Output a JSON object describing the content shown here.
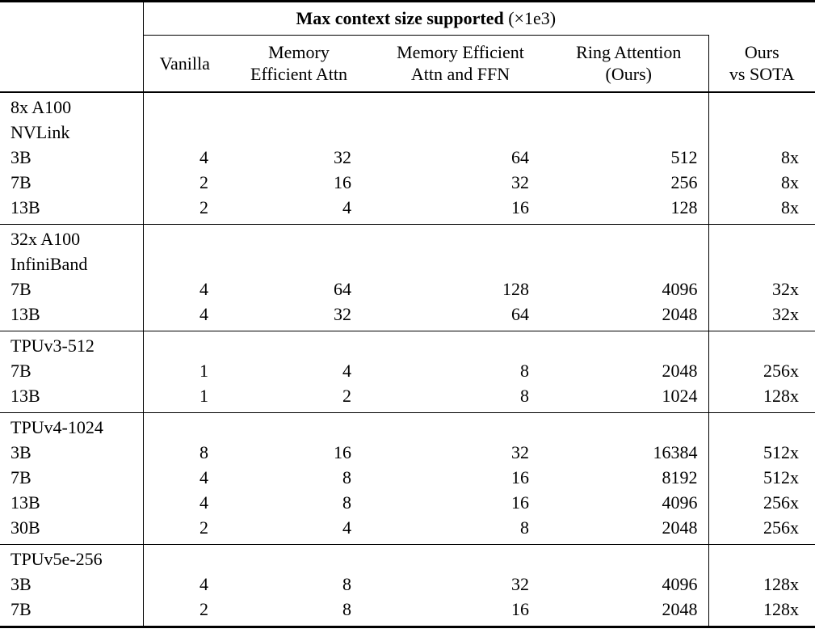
{
  "page": {
    "background": "#ffffff",
    "text_color": "#000000",
    "rule_color": "#000000"
  },
  "table": {
    "span_header": {
      "title_bold": "Max context size supported",
      "title_suffix": "(×1e3)"
    },
    "columns": [
      {
        "id": "vanilla",
        "lines": [
          "Vanilla"
        ]
      },
      {
        "id": "memory-efficient-attn",
        "lines": [
          "Memory",
          "Efficient Attn"
        ]
      },
      {
        "id": "memory-efficient-attn-and-ffn",
        "lines": [
          "Memory Efficient",
          "Attn and FFN"
        ]
      },
      {
        "id": "ring-attention-ours",
        "lines": [
          "Ring Attention",
          "(Ours)"
        ]
      },
      {
        "id": "ours-vs-sota",
        "lines": [
          "Ours",
          "vs SOTA"
        ]
      }
    ],
    "groups": [
      {
        "label_lines": [
          "8x A100",
          "NVLink"
        ],
        "rows": [
          {
            "label": "3B",
            "values": [
              "4",
              "32",
              "64",
              "512",
              "8x"
            ]
          },
          {
            "label": "7B",
            "values": [
              "2",
              "16",
              "32",
              "256",
              "8x"
            ]
          },
          {
            "label": "13B",
            "values": [
              "2",
              "4",
              "16",
              "128",
              "8x"
            ]
          }
        ]
      },
      {
        "label_lines": [
          "32x A100",
          "InfiniBand"
        ],
        "rows": [
          {
            "label": "7B",
            "values": [
              "4",
              "64",
              "128",
              "4096",
              "32x"
            ]
          },
          {
            "label": "13B",
            "values": [
              "4",
              "32",
              "64",
              "2048",
              "32x"
            ]
          }
        ]
      },
      {
        "label_lines": [
          "TPUv3-512"
        ],
        "rows": [
          {
            "label": "7B",
            "values": [
              "1",
              "4",
              "8",
              "2048",
              "256x"
            ]
          },
          {
            "label": "13B",
            "values": [
              "1",
              "2",
              "8",
              "1024",
              "128x"
            ]
          }
        ]
      },
      {
        "label_lines": [
          "TPUv4-1024"
        ],
        "rows": [
          {
            "label": "3B",
            "values": [
              "8",
              "16",
              "32",
              "16384",
              "512x"
            ]
          },
          {
            "label": "7B",
            "values": [
              "4",
              "8",
              "16",
              "8192",
              "512x"
            ]
          },
          {
            "label": "13B",
            "values": [
              "4",
              "8",
              "16",
              "4096",
              "256x"
            ]
          },
          {
            "label": "30B",
            "values": [
              "2",
              "4",
              "8",
              "2048",
              "256x"
            ]
          }
        ]
      },
      {
        "label_lines": [
          "TPUv5e-256"
        ],
        "rows": [
          {
            "label": "3B",
            "values": [
              "4",
              "8",
              "32",
              "4096",
              "128x"
            ]
          },
          {
            "label": "7B",
            "values": [
              "2",
              "8",
              "16",
              "2048",
              "128x"
            ]
          }
        ]
      }
    ]
  }
}
